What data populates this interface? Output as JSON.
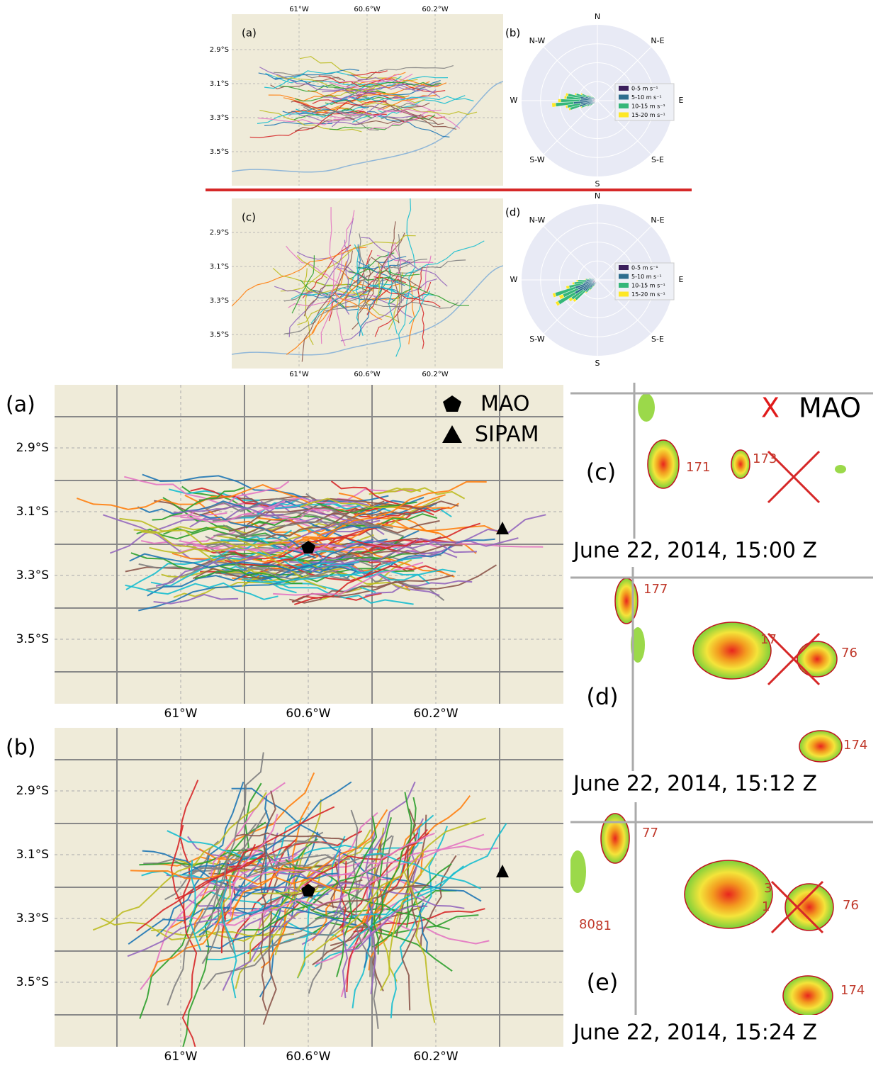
{
  "small_maps": [
    {
      "label": "(a)"
    },
    {
      "label": "(c)"
    }
  ],
  "small_lon_ticks": [
    "61°W",
    "60.6°W",
    "60.2°W"
  ],
  "small_lat_ticks": [
    "2.9°S",
    "3.1°S",
    "3.3°S",
    "3.5°S"
  ],
  "roses": [
    {
      "label": "(b)"
    },
    {
      "label": "(d)"
    }
  ],
  "rose_directions": [
    "N",
    "N-E",
    "E",
    "S-E",
    "S",
    "S-W",
    "W",
    "N-W"
  ],
  "rose_legend": [
    "0-5 m s⁻¹",
    "5-10 m s⁻¹",
    "10-15 m s⁻¹",
    "15-20 m s⁻¹"
  ],
  "big_maps": [
    {
      "label": "(a)"
    },
    {
      "label": "(b)"
    }
  ],
  "big_lon_ticks": [
    "61°W",
    "60.6°W",
    "60.2°W"
  ],
  "big_lat_ticks": [
    "2.9°S",
    "3.1°S",
    "3.3°S",
    "3.5°S"
  ],
  "map_legend": [
    "MAO",
    "SIPAM"
  ],
  "radar_legend": {
    "marker": "X",
    "label": "MAO"
  },
  "radar_panels": [
    {
      "label": "(c)",
      "caption": "June 22, 2014, 15:00 Z",
      "cells": [
        "171",
        "173"
      ]
    },
    {
      "label": "(d)",
      "caption": "June 22, 2014, 15:12 Z",
      "cells": [
        "177",
        "17",
        "76",
        "174"
      ]
    },
    {
      "label": "(e)",
      "caption": "June 22, 2014, 15:24 Z",
      "cells": [
        "77",
        "3",
        "1",
        "76",
        "174",
        "80",
        "81"
      ]
    }
  ]
}
